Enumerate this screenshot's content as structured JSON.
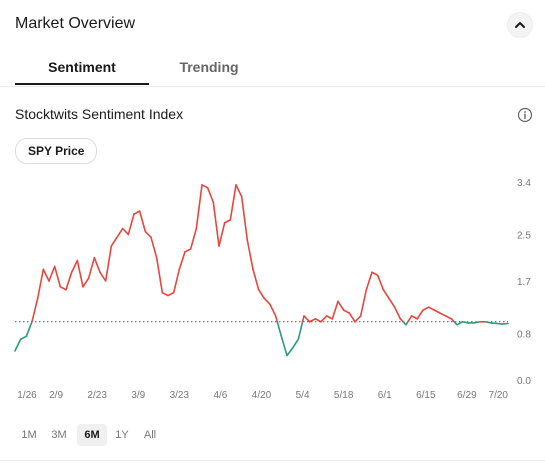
{
  "header": {
    "title": "Market Overview",
    "collapse_icon": "chevron-up-icon"
  },
  "tabs": [
    {
      "label": "Sentiment",
      "active": true
    },
    {
      "label": "Trending",
      "active": false
    }
  ],
  "section": {
    "title": "Stocktwits Sentiment Index",
    "info_icon": "info-icon"
  },
  "toggle": {
    "label": "SPY Price"
  },
  "colors": {
    "up": "#e8453c",
    "down": "#2a9d7c",
    "baseline": "#555555"
  },
  "chart_data": {
    "type": "line",
    "title": "",
    "xlabel": "",
    "ylabel": "",
    "x_ticks": [
      "1/26",
      "2/9",
      "2/23",
      "3/9",
      "3/23",
      "4/6",
      "4/20",
      "5/4",
      "5/18",
      "6/1",
      "6/15",
      "6/29",
      "7/20"
    ],
    "y_ticks": [
      "0.0",
      "0.8",
      "1.7",
      "2.5",
      "3.4"
    ],
    "ylim": [
      0,
      3.4
    ],
    "baseline": 1.0,
    "baseline_style": "dotted",
    "color_rule": "red above baseline, green below baseline",
    "x": [
      "1/26",
      "1/28",
      "1/30",
      "2/1",
      "2/3",
      "2/5",
      "2/7",
      "2/9",
      "2/11",
      "2/13",
      "2/15",
      "2/17",
      "2/19",
      "2/21",
      "2/23",
      "2/25",
      "2/27",
      "3/1",
      "3/3",
      "3/5",
      "3/7",
      "3/9",
      "3/11",
      "3/13",
      "3/15",
      "3/17",
      "3/19",
      "3/21",
      "3/23",
      "3/25",
      "3/27",
      "3/29",
      "3/31",
      "4/2",
      "4/4",
      "4/6",
      "4/8",
      "4/10",
      "4/12",
      "4/14",
      "4/16",
      "4/18",
      "4/20",
      "4/22",
      "4/24",
      "4/26",
      "4/28",
      "4/30",
      "5/2",
      "5/4",
      "5/6",
      "5/8",
      "5/10",
      "5/12",
      "5/14",
      "5/16",
      "5/18",
      "5/20",
      "5/22",
      "5/24",
      "5/26",
      "5/28",
      "5/30",
      "6/1",
      "6/3",
      "6/5",
      "6/7",
      "6/9",
      "6/11",
      "6/13",
      "6/15",
      "6/17",
      "6/19",
      "6/21",
      "6/23",
      "6/25",
      "6/27",
      "6/29",
      "7/1",
      "7/3",
      "7/5",
      "7/7",
      "7/9",
      "7/11",
      "7/13",
      "7/15",
      "7/17",
      "7/20"
    ],
    "series": [
      {
        "values": [
          0.5,
          0.7,
          0.75,
          1.0,
          1.4,
          1.9,
          1.7,
          1.95,
          1.6,
          1.55,
          1.85,
          2.05,
          1.6,
          1.75,
          2.1,
          1.85,
          1.7,
          2.3,
          2.45,
          2.6,
          2.5,
          2.85,
          2.9,
          2.55,
          2.45,
          2.1,
          1.5,
          1.45,
          1.5,
          1.9,
          2.2,
          2.25,
          2.6,
          3.35,
          3.3,
          3.05,
          2.3,
          2.7,
          2.75,
          3.35,
          3.15,
          2.4,
          1.9,
          1.55,
          1.4,
          1.3,
          1.1,
          0.75,
          0.42,
          0.55,
          0.7,
          1.1,
          1.0,
          1.05,
          1.0,
          1.1,
          1.05,
          1.35,
          1.2,
          1.15,
          1.0,
          1.1,
          1.55,
          1.85,
          1.8,
          1.55,
          1.4,
          1.25,
          1.05,
          0.95,
          1.1,
          1.05,
          1.2,
          1.25,
          1.2,
          1.15,
          1.1,
          1.05,
          0.95,
          1.0,
          0.98,
          0.98,
          1.0,
          1.0,
          0.98,
          0.97,
          0.96,
          0.97
        ]
      }
    ]
  },
  "ranges": [
    {
      "label": "1M",
      "active": false
    },
    {
      "label": "3M",
      "active": false
    },
    {
      "label": "6M",
      "active": true
    },
    {
      "label": "1Y",
      "active": false
    },
    {
      "label": "All",
      "active": false
    }
  ]
}
